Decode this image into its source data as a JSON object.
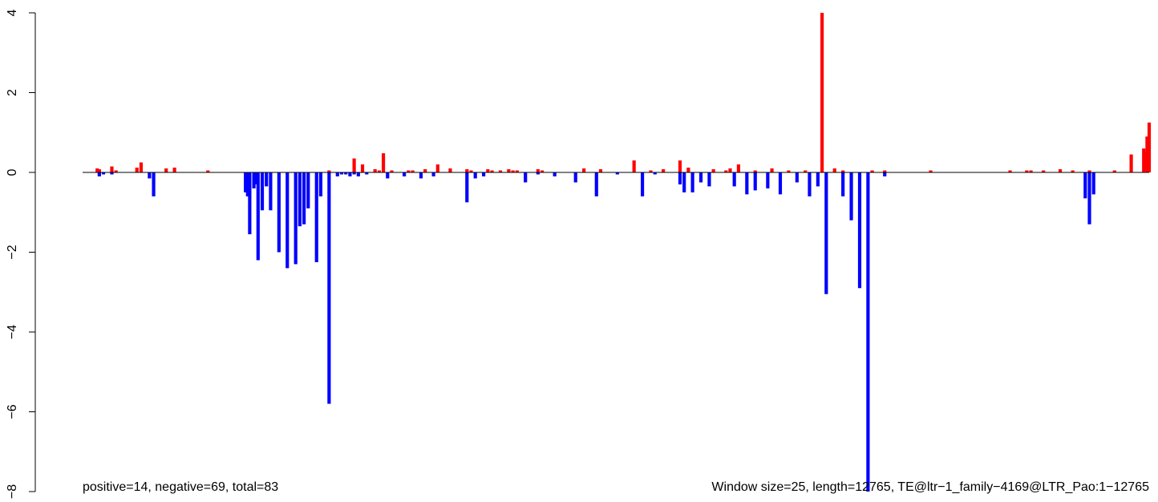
{
  "chart_data": {
    "type": "bar",
    "title": "",
    "xlabel": "",
    "ylabel": "",
    "xlim": [
      0,
      12765
    ],
    "ylim": [
      -8,
      4
    ],
    "y_ticks": [
      {
        "value": -8,
        "label": "−8"
      },
      {
        "value": -6,
        "label": "−6"
      },
      {
        "value": -4,
        "label": "−4"
      },
      {
        "value": -2,
        "label": "−2"
      },
      {
        "value": 0,
        "label": "0"
      },
      {
        "value": 2,
        "label": "2"
      },
      {
        "value": 4,
        "label": "4"
      }
    ],
    "bar_width": 25,
    "colors": {
      "positive": "#ff0000",
      "negative": "#0000ff",
      "baseline": "#000000"
    },
    "annotation_left": "positive=14, negative=69, total=83",
    "annotation_right": "Window size=25, length=12765, TE@ltr−1_family−4169@LTR_Pao:1−12765",
    "positive": {
      "x": [
        175,
        200,
        350,
        400,
        650,
        700,
        1000,
        1100,
        1500,
        2950,
        3250,
        3350,
        3500,
        3550,
        3600,
        3700,
        3900,
        3950,
        4100,
        4250,
        4400,
        4600,
        4650,
        4850,
        4900,
        5000,
        5100,
        5150,
        5200,
        5450,
        5500,
        6000,
        6200,
        6600,
        6800,
        6950,
        7150,
        7250,
        7550,
        7700,
        7750,
        7850,
        8050,
        8250,
        8450,
        8650,
        8850,
        9000,
        9100,
        9450,
        9600,
        10150,
        11100,
        11300,
        11350,
        11500,
        11700,
        11850,
        12050,
        12350,
        12550,
        12700,
        12720,
        12740,
        12765
      ],
      "y": [
        0.1,
        0.08,
        0.15,
        0.05,
        0.12,
        0.25,
        0.1,
        0.12,
        0.05,
        0.05,
        0.35,
        0.2,
        0.08,
        0.05,
        0.48,
        0.05,
        0.05,
        0.05,
        0.08,
        0.2,
        0.1,
        0.08,
        0.05,
        0.08,
        0.05,
        0.05,
        0.08,
        0.05,
        0.05,
        0.08,
        0.05,
        0.1,
        0.08,
        0.3,
        0.05,
        0.08,
        0.3,
        0.12,
        0.08,
        0.05,
        0.1,
        0.2,
        0.05,
        0.1,
        0.05,
        0.05,
        4.0,
        0.1,
        0.05,
        0.05,
        0.05,
        0.05,
        0.05,
        0.05,
        0.05,
        0.05,
        0.08,
        0.05,
        0.05,
        0.05,
        0.45,
        0.6,
        0.5,
        0.9,
        1.25
      ]
    },
    "negative": {
      "x": [
        200,
        250,
        350,
        800,
        850,
        1950,
        1975,
        2000,
        2050,
        2075,
        2100,
        2150,
        2200,
        2250,
        2350,
        2450,
        2550,
        2600,
        2650,
        2700,
        2800,
        2850,
        2950,
        3050,
        3100,
        3150,
        3200,
        3250,
        3300,
        3400,
        3650,
        3850,
        4050,
        4200,
        4600,
        4700,
        4800,
        5300,
        5450,
        5650,
        5900,
        6150,
        6400,
        6700,
        6850,
        7150,
        7200,
        7300,
        7400,
        7500,
        7800,
        7950,
        8050,
        8200,
        8350,
        8550,
        8700,
        8800,
        8900,
        9100,
        9200,
        9300,
        9400,
        9600,
        12000,
        12050,
        12100
      ],
      "y": [
        -0.1,
        -0.05,
        -0.05,
        -0.15,
        -0.6,
        -0.5,
        -0.6,
        -1.55,
        -0.4,
        -0.3,
        -2.2,
        -0.95,
        -0.35,
        -0.95,
        -2.0,
        -2.4,
        -2.3,
        -1.35,
        -1.3,
        -0.9,
        -2.25,
        -0.6,
        -5.8,
        -0.1,
        -0.05,
        -0.05,
        -0.1,
        -0.05,
        -0.1,
        -0.05,
        -0.15,
        -0.1,
        -0.15,
        -0.1,
        -0.75,
        -0.15,
        -0.1,
        -0.25,
        -0.05,
        -0.1,
        -0.25,
        -0.6,
        -0.05,
        -0.6,
        -0.05,
        -0.3,
        -0.5,
        -0.5,
        -0.25,
        -0.35,
        -0.35,
        -0.55,
        -0.45,
        -0.4,
        -0.55,
        -0.25,
        -0.6,
        -0.35,
        -3.05,
        -0.6,
        -1.2,
        -2.9,
        -8.0,
        -0.1,
        -0.65,
        -1.3,
        -0.55
      ]
    }
  }
}
